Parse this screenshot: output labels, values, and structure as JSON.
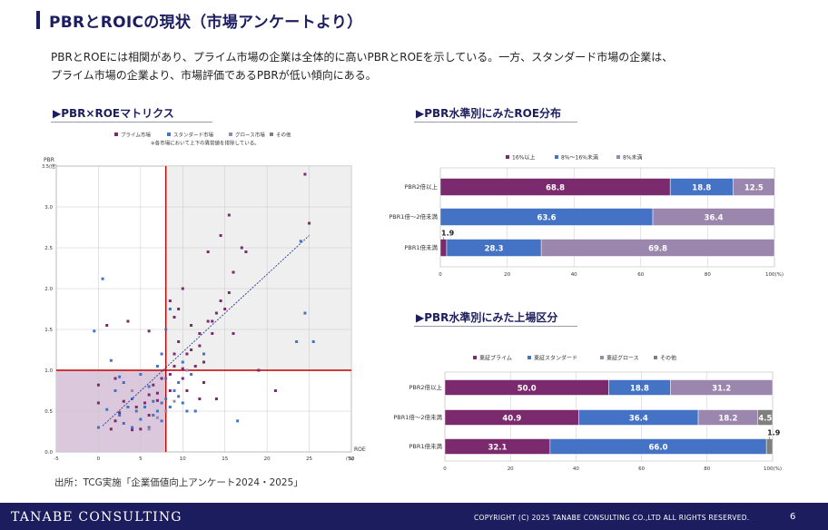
{
  "page": {
    "title": "PBRとROICの現状（市場アンケートより）",
    "description_line1": "PBRとROEには相関があり、プライム市場の企業は全体的に高いPBRとROEを示している。一方、スタンダード市場の企業は、",
    "description_line2": "プライム市場の企業より、市場評価であるPBRが低い傾向にある。",
    "source": "出所：TCG実施「企業価値向上アンケート2024・2025」"
  },
  "sections": {
    "matrix": "▶PBR×ROEマトリクス",
    "roe_dist": "▶PBR水準別にみたROE分布",
    "market_dist": "▶PBR水準別にみた上場区分"
  },
  "colors": {
    "prime": "#7b2a6e",
    "standard": "#4472c4",
    "growth": "#9b86ad",
    "other": "#7f7f7f",
    "red": "#c00000",
    "navy": "#1c1d5e",
    "quad_gray": "#efefef",
    "quad_pink": "#dcc8dc"
  },
  "footer": {
    "company": "TANABE CONSULTING",
    "copyright": "COPYRIGHT (C) 2025 TANABE CONSULTING CO.,LTD   ALL RIGHTS RESERVED.",
    "page_number": "6"
  },
  "chart_data": [
    {
      "type": "scatter",
      "title": "PBR×ROEマトリクス",
      "legend": [
        "プライム市場",
        "スタンダード市場",
        "グロース市場",
        "その他"
      ],
      "note": "※各市場において上下の異常値を排除している。",
      "xlabel": "ROE",
      "xunit": "(%)",
      "ylabel": "PBR",
      "yunit": "(倍)",
      "xlim": [
        -5,
        30
      ],
      "ylim": [
        0,
        3.5
      ],
      "xticks": [
        "-5",
        "0",
        "5",
        "10",
        "15",
        "20",
        "25",
        "30"
      ],
      "yticks": [
        "0.0",
        "0.5",
        "1.0",
        "1.5",
        "2.0",
        "2.5",
        "3.0",
        "3.5"
      ],
      "threshold_x": 8,
      "threshold_y": 1.0,
      "trendline": {
        "x": [
          0.5,
          25
        ],
        "y": [
          0.32,
          2.65
        ]
      },
      "series": [
        {
          "name": "プライム市場",
          "points": [
            [
              2,
              0.38
            ],
            [
              3,
              0.62
            ],
            [
              4,
              0.27
            ],
            [
              5,
              0.28
            ],
            [
              5.5,
              0.6
            ],
            [
              6,
              0.7
            ],
            [
              6.5,
              0.82
            ],
            [
              7,
              0.72
            ],
            [
              7.5,
              0.9
            ],
            [
              8.5,
              0.95
            ],
            [
              9,
              1.05
            ],
            [
              9,
              1.2
            ],
            [
              9.5,
              1.35
            ],
            [
              10,
              0.9
            ],
            [
              10.5,
              1.2
            ],
            [
              10.5,
              0.75
            ],
            [
              11,
              1.55
            ],
            [
              11.5,
              1.05
            ],
            [
              12,
              1.3
            ],
            [
              12.5,
              1.1
            ],
            [
              13,
              1.6
            ],
            [
              13.5,
              1.45
            ],
            [
              14,
              1.7
            ],
            [
              14.5,
              1.85
            ],
            [
              15,
              1.75
            ],
            [
              15.5,
              1.95
            ],
            [
              16,
              2.2
            ],
            [
              13,
              2.45
            ],
            [
              14.5,
              2.65
            ],
            [
              15.5,
              2.9
            ],
            [
              17,
              2.5
            ],
            [
              10,
              2.0
            ],
            [
              12,
              0.65
            ],
            [
              12,
              1.45
            ],
            [
              8.5,
              1.85
            ],
            [
              9.5,
              1.75
            ],
            [
              1,
              1.55
            ],
            [
              1.5,
              0.28
            ],
            [
              2,
              0.9
            ],
            [
              3.5,
              1.6
            ],
            [
              4.5,
              0.55
            ],
            [
              6,
              0.45
            ],
            [
              7,
              0.63
            ],
            [
              8.5,
              0.75
            ],
            [
              10,
              1.02
            ],
            [
              11,
              1.25
            ],
            [
              13.5,
              1.6
            ],
            [
              16,
              1.45
            ],
            [
              17.5,
              2.45
            ],
            [
              21,
              0.75
            ],
            [
              24.5,
              3.4
            ],
            [
              25,
              2.8
            ],
            [
              19,
              1.0
            ],
            [
              12.5,
              0.85
            ],
            [
              14,
              0.65
            ],
            [
              9,
              1.65
            ],
            [
              6,
              1.48
            ],
            [
              0,
              0.6
            ],
            [
              0,
              0.82
            ],
            [
              2.5,
              0.48
            ]
          ]
        },
        {
          "name": "スタンダード市場",
          "points": [
            [
              -0.5,
              1.48
            ],
            [
              0.5,
              2.12
            ],
            [
              1.5,
              1.12
            ],
            [
              2,
              0.75
            ],
            [
              2.5,
              0.45
            ],
            [
              3,
              0.35
            ],
            [
              3.5,
              0.55
            ],
            [
              4,
              0.65
            ],
            [
              4.5,
              0.5
            ],
            [
              5,
              0.4
            ],
            [
              5.5,
              0.55
            ],
            [
              6,
              0.3
            ],
            [
              6.5,
              0.45
            ],
            [
              7,
              0.5
            ],
            [
              7.5,
              0.38
            ],
            [
              8,
              0.65
            ],
            [
              8.5,
              0.55
            ],
            [
              9,
              0.75
            ],
            [
              9.5,
              0.68
            ],
            [
              10,
              0.6
            ],
            [
              10.5,
              0.5
            ],
            [
              11,
              0.95
            ],
            [
              7,
              1.05
            ],
            [
              7.5,
              1.2
            ],
            [
              8,
              0.9
            ],
            [
              0,
              0.3
            ],
            [
              1,
              0.52
            ],
            [
              3,
              0.85
            ],
            [
              5,
              0.95
            ],
            [
              6.5,
              0.62
            ],
            [
              12.5,
              1.2
            ],
            [
              16.5,
              0.38
            ],
            [
              24.5,
              1.7
            ],
            [
              25.5,
              1.35
            ],
            [
              24,
              2.58
            ],
            [
              23.5,
              1.35
            ],
            [
              8.5,
              1.75
            ],
            [
              2.5,
              0.92
            ],
            [
              4,
              0.3
            ],
            [
              9.5,
              0.85
            ],
            [
              11.5,
              0.5
            ],
            [
              6,
              0.8
            ],
            [
              7.5,
              0.6
            ],
            [
              10,
              1.1
            ],
            [
              8,
              1.5
            ]
          ]
        },
        {
          "name": "グロース市場",
          "points": [
            [
              6,
              0.28
            ],
            [
              7,
              0.42
            ],
            [
              8,
              0.5
            ],
            [
              9,
              0.62
            ],
            [
              10.5,
              1.0
            ],
            [
              4,
              0.75
            ]
          ]
        },
        {
          "name": "その他",
          "points": []
        }
      ]
    },
    {
      "type": "bar",
      "stacked": true,
      "orientation": "horizontal",
      "title": "PBR水準別にみたROE分布",
      "categories": [
        "PBR2倍以上",
        "PBR1倍～2倍未満",
        "PBR1倍未満"
      ],
      "series": [
        {
          "name": "16%以上",
          "values": [
            68.8,
            0,
            1.9
          ]
        },
        {
          "name": "8%～16%未満",
          "values": [
            18.8,
            63.6,
            28.3
          ]
        },
        {
          "name": "8%未満",
          "values": [
            12.5,
            36.4,
            69.8
          ]
        }
      ],
      "xlim": [
        0,
        100
      ],
      "xticks": [
        "0",
        "20",
        "40",
        "60",
        "80",
        "100(%)"
      ]
    },
    {
      "type": "bar",
      "stacked": true,
      "orientation": "horizontal",
      "title": "PBR水準別にみた上場区分",
      "categories": [
        "PBR2倍以上",
        "PBR1倍～2倍未満",
        "PBR1倍未満"
      ],
      "series": [
        {
          "name": "東証プライム",
          "values": [
            50.0,
            40.9,
            32.1
          ]
        },
        {
          "name": "東証スタンダード",
          "values": [
            18.8,
            36.4,
            66.0
          ]
        },
        {
          "name": "東証グロース",
          "values": [
            31.2,
            18.2,
            0
          ]
        },
        {
          "name": "その他",
          "values": [
            0,
            4.5,
            1.9
          ]
        }
      ],
      "xlim": [
        0,
        100
      ],
      "xticks": [
        "0",
        "20",
        "40",
        "60",
        "80",
        "100(%)"
      ]
    }
  ]
}
